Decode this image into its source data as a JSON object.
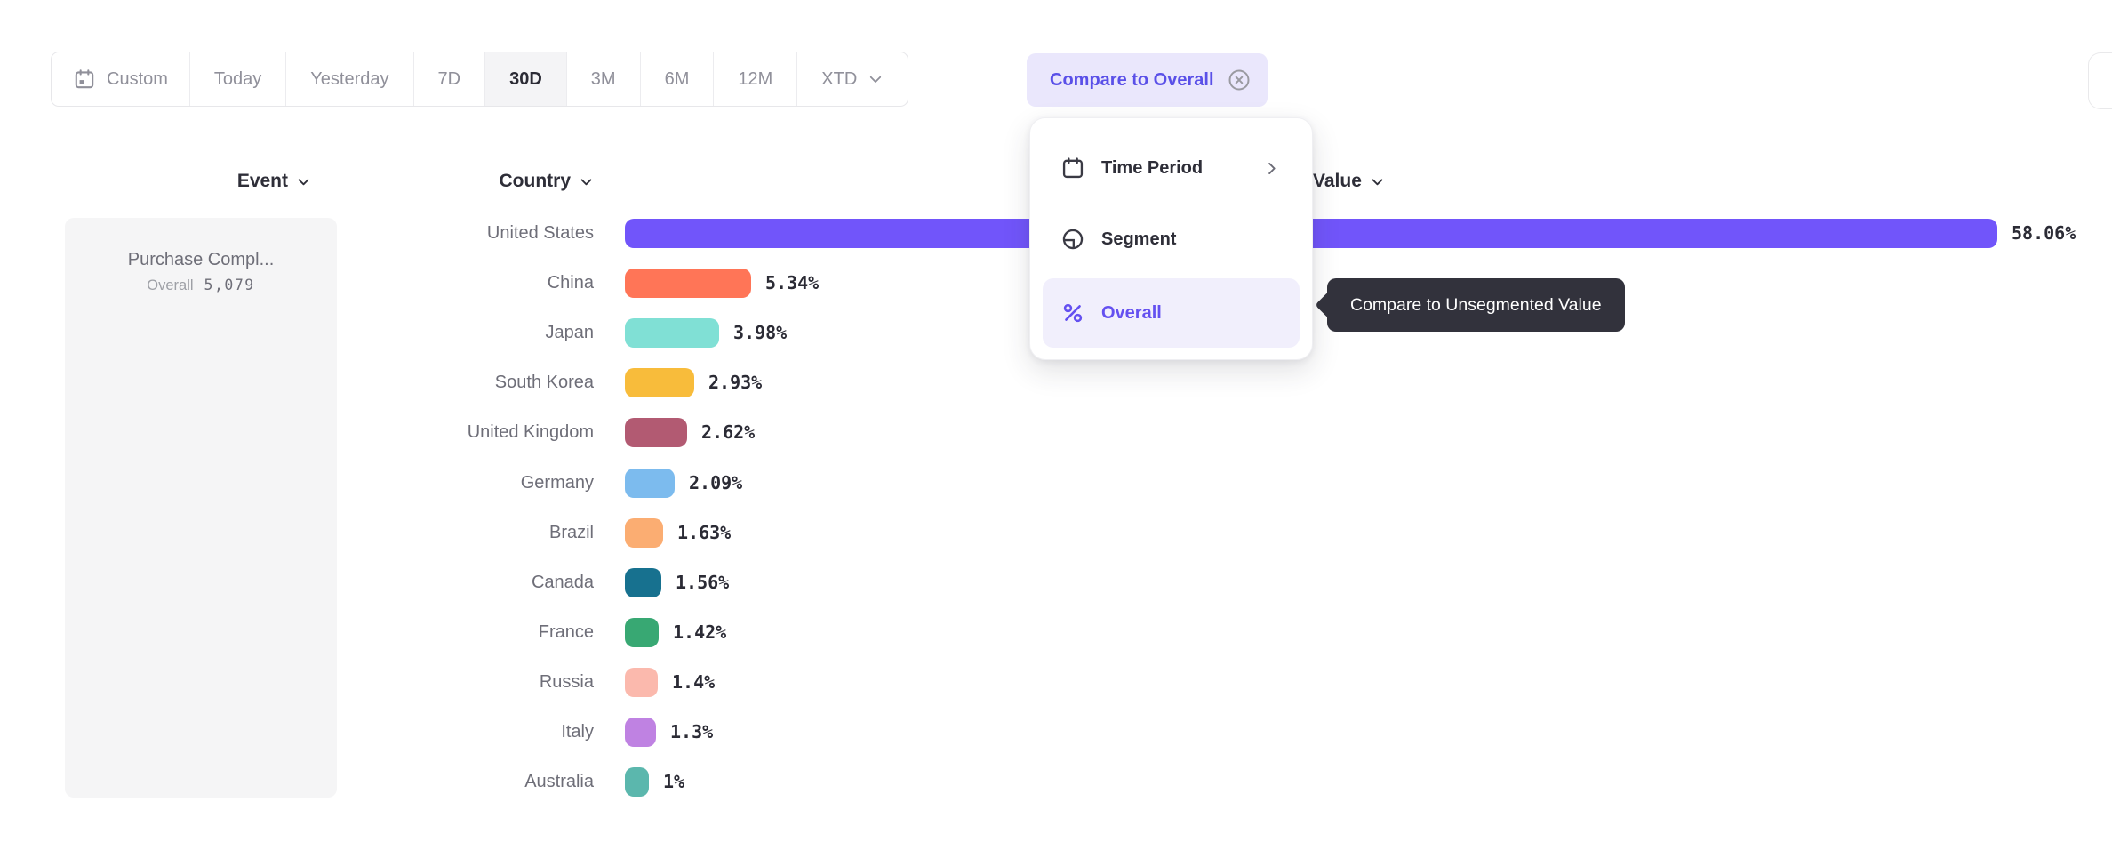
{
  "toolbar": {
    "items": [
      {
        "label": "Custom"
      },
      {
        "label": "Today"
      },
      {
        "label": "Yesterday"
      },
      {
        "label": "7D"
      },
      {
        "label": "30D",
        "selected": true
      },
      {
        "label": "3M"
      },
      {
        "label": "6M"
      },
      {
        "label": "12M"
      },
      {
        "label": "XTD"
      }
    ],
    "compare_chip": {
      "label": "Compare to Overall"
    }
  },
  "headers": {
    "event": "Event",
    "country": "Country",
    "value": "Value"
  },
  "event_panel": {
    "event_name": "Purchase Compl...",
    "overall_label": "Overall",
    "overall_value": "5,079"
  },
  "menu": {
    "items": [
      {
        "label": "Time Period"
      },
      {
        "label": "Segment"
      },
      {
        "label": "Overall"
      }
    ]
  },
  "tooltip": {
    "text": "Compare to Unsegmented Value"
  },
  "chart_data": {
    "type": "bar",
    "orientation": "horizontal",
    "series_name": "Purchase Compl...",
    "unit": "%",
    "categories": [
      "United States",
      "China",
      "Japan",
      "South Korea",
      "United Kingdom",
      "Germany",
      "Brazil",
      "Canada",
      "France",
      "Russia",
      "Italy",
      "Australia"
    ],
    "values": [
      58.06,
      5.34,
      3.98,
      2.93,
      2.62,
      2.09,
      1.63,
      1.56,
      1.42,
      1.4,
      1.3,
      1
    ],
    "value_labels": [
      "58.06%",
      "5.34%",
      "3.98%",
      "2.93%",
      "2.62%",
      "2.09%",
      "1.63%",
      "1.56%",
      "1.42%",
      "1.4%",
      "1.3%",
      "1%"
    ],
    "bar_colors": [
      "#7155FA",
      "#FF7557",
      "#80E0D5",
      "#F8BC3B",
      "#B25A72",
      "#7CBBEE",
      "#FBAD72",
      "#17718F",
      "#38A873",
      "#FBB9AD",
      "#BF82E2",
      "#5BB7AD"
    ],
    "xlim": [
      0,
      60
    ],
    "grid": false,
    "legend": false
  },
  "colors": {
    "accent_purple": "#6450F0",
    "chip_bg": "#EAE7FC",
    "chip_text": "#5A50E8",
    "selected_segment_bg": "#F4F4F6",
    "card_bg": "#F5F5F6",
    "tooltip_bg": "#32323C",
    "menu_highlight_bg": "#F1EFFC",
    "label_gray": "#6E6E78"
  }
}
